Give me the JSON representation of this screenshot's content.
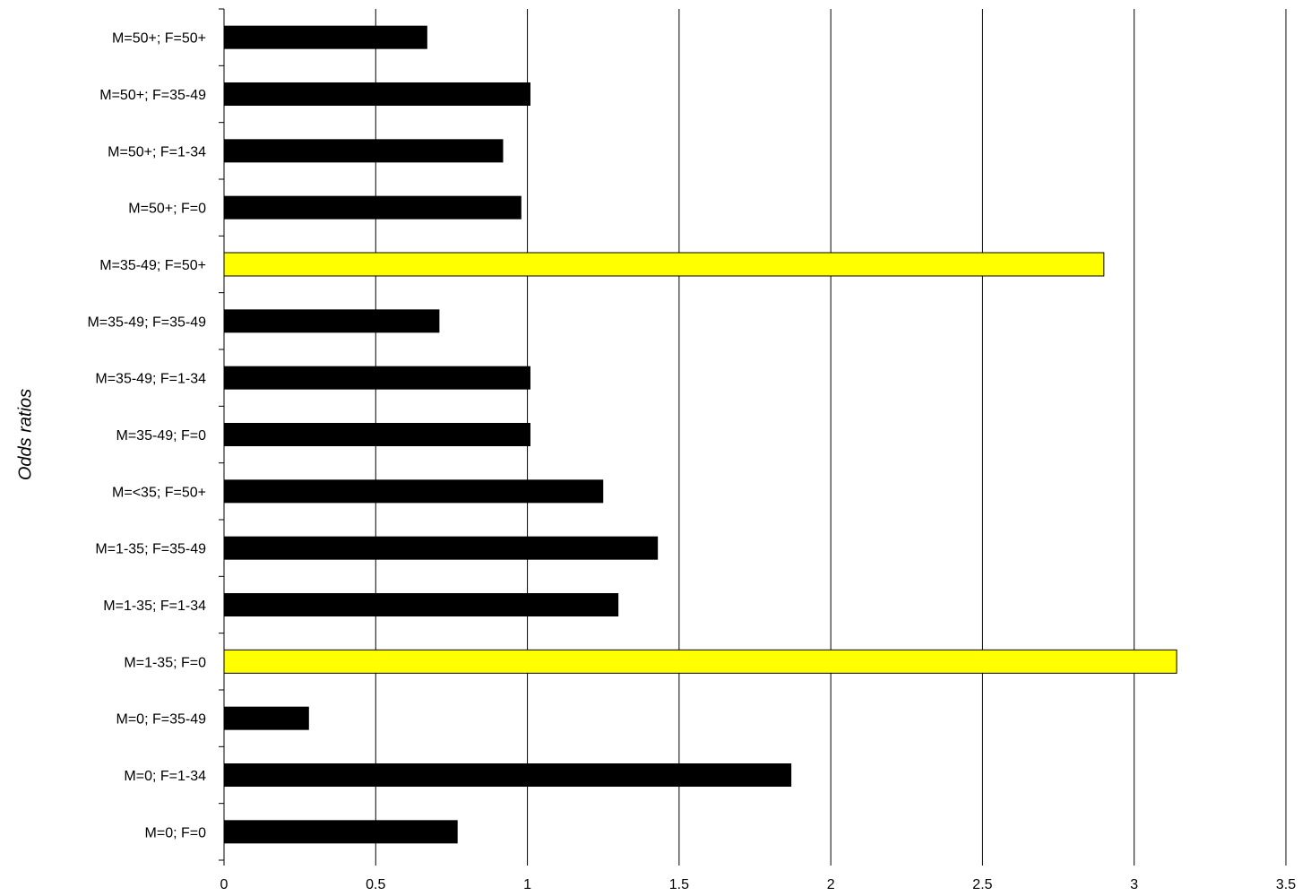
{
  "chart_data": {
    "type": "bar",
    "orientation": "horizontal",
    "title": "",
    "xlabel": "",
    "ylabel": "Odds ratios",
    "xlim": [
      0,
      3.5
    ],
    "x_ticks": [
      "0",
      "0.5",
      "1",
      "1.5",
      "2",
      "2.5",
      "3",
      "3.5"
    ],
    "grid": "vertical gridlines at major x ticks",
    "legend": "none",
    "categories": [
      "M=50+; F=50+",
      "M=50+; F=35-49",
      "M=50+; F=1-34",
      "M=50+; F=0",
      "M=35-49; F=50+",
      "M=35-49; F=35-49",
      "M=35-49; F=1-34",
      "M=35-49; F=0",
      "M=<35; F=50+",
      "M=1-35; F=35-49",
      "M=1-35; F=1-34",
      "M=1-35; F=0",
      "M=0; F=35-49",
      "M=0; F=1-34",
      "M=0; F=0"
    ],
    "values": [
      0.67,
      1.01,
      0.92,
      0.98,
      2.9,
      0.71,
      1.01,
      1.01,
      1.25,
      1.43,
      1.3,
      3.14,
      0.28,
      1.87,
      0.77
    ],
    "highlighted": [
      false,
      false,
      false,
      false,
      true,
      false,
      false,
      false,
      false,
      false,
      false,
      true,
      false,
      false,
      false
    ],
    "colors": {
      "bar": "#000000",
      "highlight": "#ffff00",
      "highlight_border": "#000000",
      "grid": "#000000"
    }
  }
}
